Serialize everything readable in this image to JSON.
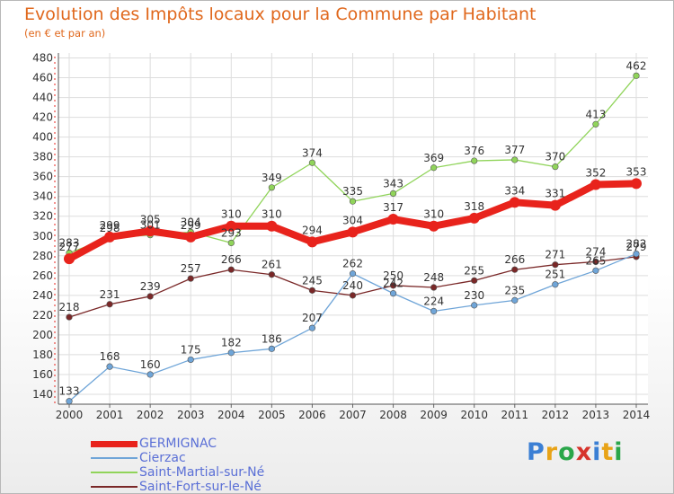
{
  "title": "Evolution des Impôts locaux pour la Commune par Habitant",
  "subtitle": "(en € et par an)",
  "logo": {
    "text": "Proxiti",
    "colors": [
      "#3b7fd4",
      "#e8a317",
      "#2aa64a",
      "#d6332b",
      "#3b7fd4",
      "#e8a317",
      "#2aa64a"
    ]
  },
  "chart_data": {
    "type": "line",
    "x": [
      "2000",
      "2001",
      "2002",
      "2003",
      "2004",
      "2005",
      "2006",
      "2007",
      "2008",
      "2009",
      "2010",
      "2011",
      "2012",
      "2013",
      "2014"
    ],
    "ylim": [
      130,
      485
    ],
    "yticks": [
      140,
      160,
      180,
      200,
      220,
      240,
      260,
      280,
      300,
      320,
      340,
      360,
      380,
      400,
      420,
      440,
      460,
      480
    ],
    "grid": true,
    "legend_position": "bottom-left",
    "series": [
      {
        "name": "GERMIGNAC",
        "color": "#e8231c",
        "values": [
          277,
          299,
          305,
          299,
          310,
          310,
          294,
          304,
          317,
          310,
          318,
          334,
          331,
          352,
          353
        ],
        "labels": [
          "277",
          "299",
          "305",
          "299",
          "310",
          "310",
          "294",
          "304",
          "317",
          "310",
          "318",
          "334",
          "331",
          "352",
          "353"
        ]
      },
      {
        "name": "Cierzac",
        "color": "#6fa5d8",
        "values": [
          133,
          168,
          160,
          175,
          182,
          186,
          207,
          262,
          242,
          224,
          230,
          235,
          251,
          265,
          282
        ],
        "labels": [
          "133",
          "168",
          "160",
          "175",
          "182",
          "186",
          "207",
          "262",
          "242",
          "224",
          "230",
          "235",
          "251",
          "265",
          "282"
        ]
      },
      {
        "name": "Saint-Martial-sur-Né",
        "color": "#90d45a",
        "values": [
          283,
          298,
          301,
          304,
          293,
          349,
          374,
          335,
          343,
          369,
          376,
          377,
          370,
          413,
          462
        ],
        "labels": [
          "283",
          "298",
          "301",
          "304",
          "293",
          "349",
          "374",
          "335",
          "343",
          "369",
          "376",
          "377",
          "370",
          "413",
          "462"
        ]
      },
      {
        "name": "Saint-Fort-sur-le-Né",
        "color": "#7a2828",
        "values": [
          218,
          231,
          239,
          257,
          266,
          261,
          245,
          240,
          250,
          248,
          255,
          266,
          271,
          274,
          279
        ],
        "labels": [
          "218",
          "231",
          "239",
          "257",
          "266",
          "261",
          "245",
          "240",
          "250",
          "248",
          "255",
          "266",
          "271",
          "274",
          "279"
        ]
      }
    ]
  }
}
